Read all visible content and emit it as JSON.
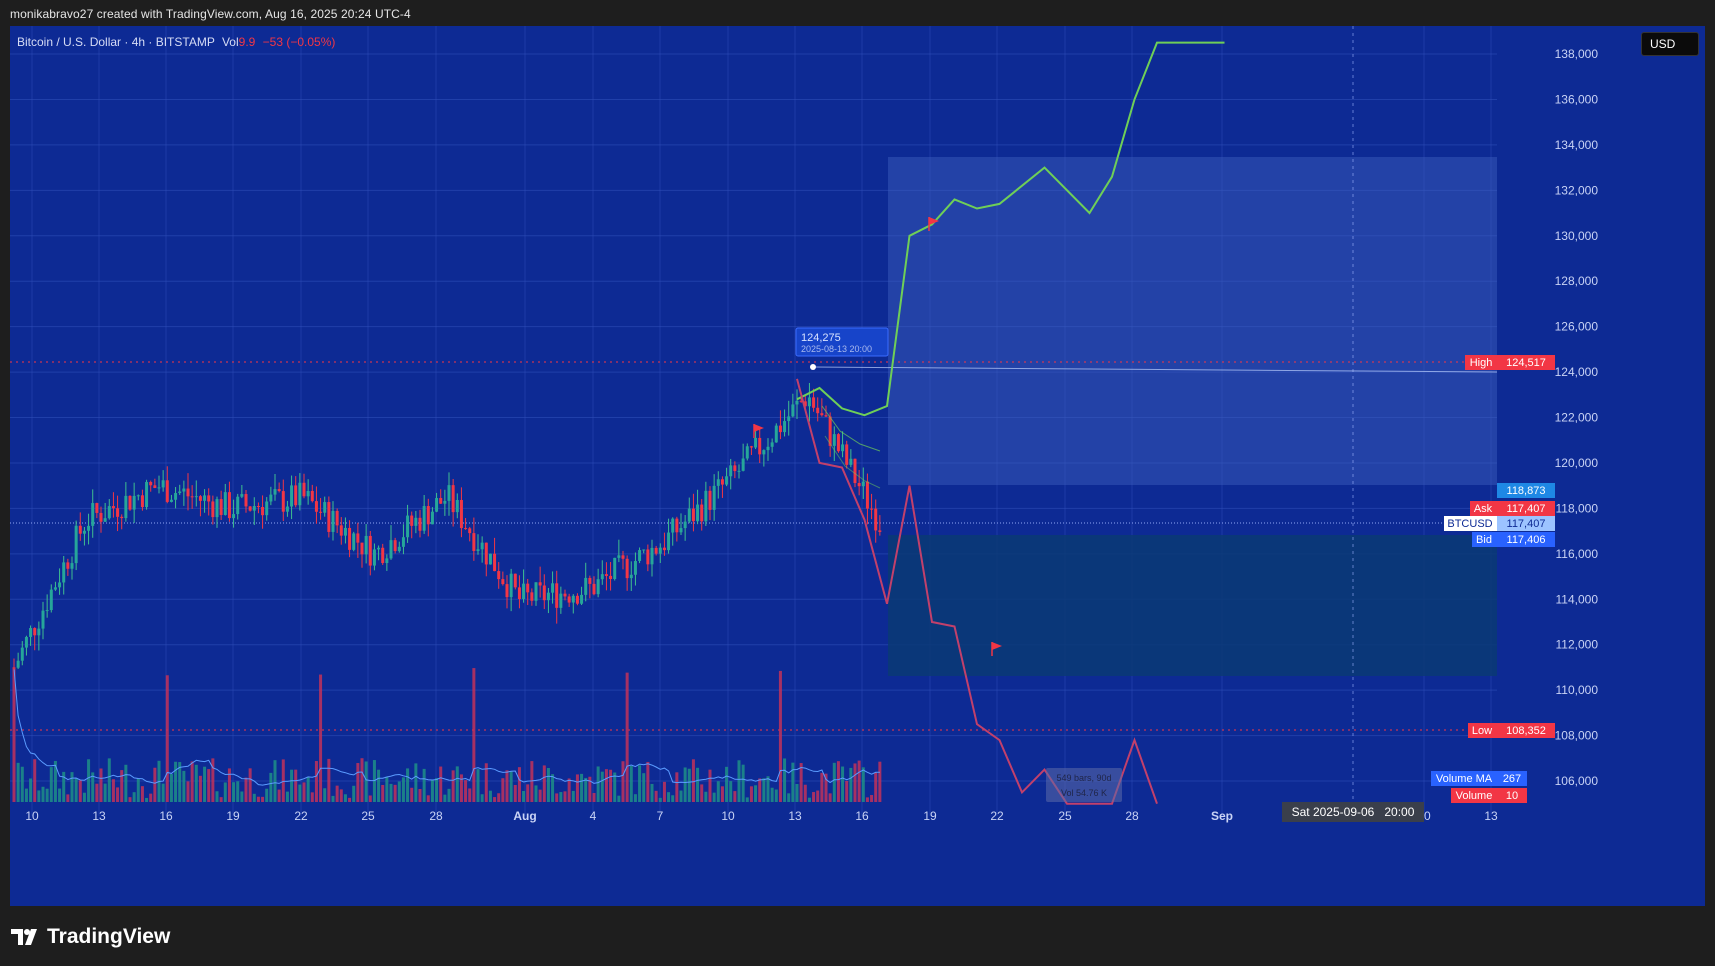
{
  "caption": "monikabravo27 created with TradingView.com, Aug 16, 2025 20:24 UTC-4",
  "legend": {
    "symbol_desc": "Bitcoin / U.S. Dollar · 4h · BITSTAMP",
    "vol_label": "Vol",
    "vol_value": "9.9",
    "change": "−53 (−0.05%)"
  },
  "currency": "USD",
  "logo_text": "TradingView",
  "colors": {
    "background": "#0d2a94",
    "up": "#26a69a",
    "down": "#f23645",
    "projection_up": "#6fcf57",
    "projection_down": "#c2406b",
    "bid": "#2962ff",
    "accent_label": "#1e88e5"
  },
  "price_axis": {
    "labels": [
      "138,000",
      "136,000",
      "134,000",
      "132,000",
      "130,000",
      "128,000",
      "126,000",
      "124,000",
      "122,000",
      "120,000",
      "118,000",
      "116,000",
      "114,000",
      "112,000",
      "110,000",
      "108,000",
      "106,000"
    ]
  },
  "time_axis": {
    "labels": [
      "10",
      "13",
      "16",
      "19",
      "22",
      "25",
      "28",
      "Aug",
      "4",
      "7",
      "10",
      "13",
      "16",
      "19",
      "22",
      "25",
      "28",
      "Sep",
      "10",
      "13"
    ],
    "crosshair_label": "Sat 2025-09-06   20:00"
  },
  "price_tags": {
    "high": {
      "label": "High",
      "value": "124,517"
    },
    "low": {
      "label": "Low",
      "value": "108,352"
    },
    "ask": {
      "label": "Ask",
      "value": "117,407"
    },
    "symbol": {
      "label": "BTCUSD",
      "value": "117,407"
    },
    "bid": {
      "label": "Bid",
      "value": "117,406"
    },
    "upper": {
      "value": "118,873"
    },
    "volume_ma": {
      "label": "Volume MA",
      "value": "267"
    },
    "volume": {
      "label": "Volume",
      "value": "10"
    }
  },
  "peak_callout": {
    "value": "124,275",
    "time": "2025-08-13 20:00"
  },
  "bars_box": {
    "line1": "549 bars, 90d",
    "line2": "Vol 54.76 K"
  },
  "chart_data": {
    "type": "line",
    "title": "Bitcoin / U.S. Dollar · 4h · BITSTAMP",
    "ylim": [
      105000,
      139500
    ],
    "x": [
      "Jul 10",
      "Jul 13",
      "Jul 16",
      "Jul 19",
      "Jul 22",
      "Jul 25",
      "Jul 28",
      "Aug 1",
      "Aug 4",
      "Aug 7",
      "Aug 10",
      "Aug 13",
      "Aug 16"
    ],
    "series": [
      {
        "values": [
          111000,
          117500,
          119000,
          118000,
          118500,
          116000,
          118500,
          114000,
          114500,
          116500,
          119500,
          123000,
          117400
        ]
      }
    ],
    "projection_up": [
      {
        "x": "Aug 13",
        "y": 122800
      },
      {
        "x": "Aug 14",
        "y": 123300
      },
      {
        "x": "Aug 15",
        "y": 122400
      },
      {
        "x": "Aug 16",
        "y": 122100
      },
      {
        "x": "Aug 17",
        "y": 122500
      },
      {
        "x": "Aug 18",
        "y": 130000
      },
      {
        "x": "Aug 19",
        "y": 130500
      },
      {
        "x": "Aug 20",
        "y": 131600
      },
      {
        "x": "Aug 21",
        "y": 131200
      },
      {
        "x": "Aug 22",
        "y": 131400
      },
      {
        "x": "Aug 24",
        "y": 133000
      },
      {
        "x": "Aug 26",
        "y": 131000
      },
      {
        "x": "Aug 27",
        "y": 132600
      },
      {
        "x": "Aug 28",
        "y": 136000
      },
      {
        "x": "Aug 29",
        "y": 138500
      },
      {
        "x": "Sep 1",
        "y": 138500
      }
    ],
    "projection_down": [
      {
        "x": "Aug 13",
        "y": 123700
      },
      {
        "x": "Aug 14",
        "y": 120000
      },
      {
        "x": "Aug 15",
        "y": 119800
      },
      {
        "x": "Aug 16",
        "y": 117500
      },
      {
        "x": "Aug 17",
        "y": 113800
      },
      {
        "x": "Aug 18",
        "y": 119000
      },
      {
        "x": "Aug 19",
        "y": 113000
      },
      {
        "x": "Aug 20",
        "y": 112800
      },
      {
        "x": "Aug 21",
        "y": 108500
      },
      {
        "x": "Aug 22",
        "y": 107800
      },
      {
        "x": "Aug 23",
        "y": 105500
      },
      {
        "x": "Aug 24",
        "y": 106500
      },
      {
        "x": "Aug 25",
        "y": 105000
      },
      {
        "x": "Aug 27",
        "y": 105000
      },
      {
        "x": "Aug 28",
        "y": 107800
      },
      {
        "x": "Aug 29",
        "y": 105000
      }
    ],
    "levels": {
      "high": 124517,
      "low": 108352,
      "current": 117407
    },
    "volume": {
      "ma": 267,
      "last": 10
    }
  }
}
